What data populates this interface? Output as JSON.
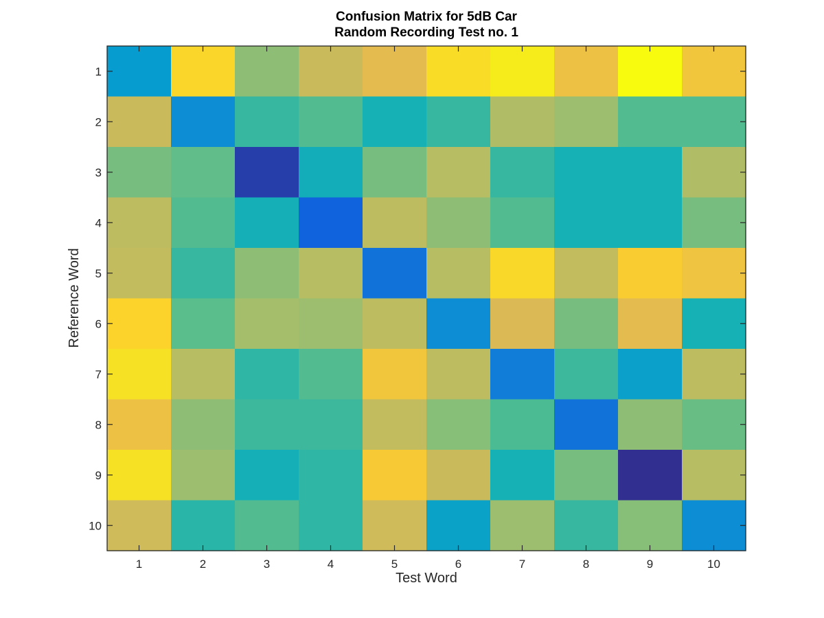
{
  "chart_data": {
    "type": "heatmap",
    "title": [
      "Confusion Matrix for 5dB Car",
      "Random Recording Test no. 1"
    ],
    "xlabel": "Test Word",
    "ylabel": "Reference Word",
    "x_categories": [
      "1",
      "2",
      "3",
      "4",
      "5",
      "6",
      "7",
      "8",
      "9",
      "10"
    ],
    "y_categories": [
      "1",
      "2",
      "3",
      "4",
      "5",
      "6",
      "7",
      "8",
      "9",
      "10"
    ],
    "colormap": "parula",
    "clim": [
      0,
      1
    ],
    "values": [
      [
        0.3,
        0.83,
        0.57,
        0.66,
        0.71,
        0.86,
        0.93,
        0.74,
        1.0,
        0.76
      ],
      [
        0.66,
        0.25,
        0.45,
        0.49,
        0.4,
        0.45,
        0.62,
        0.59,
        0.49,
        0.49
      ],
      [
        0.54,
        0.51,
        0.04,
        0.38,
        0.54,
        0.63,
        0.45,
        0.4,
        0.4,
        0.62
      ],
      [
        0.64,
        0.49,
        0.39,
        0.12,
        0.64,
        0.57,
        0.49,
        0.4,
        0.4,
        0.54
      ],
      [
        0.65,
        0.45,
        0.57,
        0.63,
        0.17,
        0.63,
        0.84,
        0.65,
        0.79,
        0.75
      ],
      [
        0.82,
        0.5,
        0.6,
        0.59,
        0.64,
        0.25,
        0.69,
        0.54,
        0.71,
        0.4
      ],
      [
        0.88,
        0.63,
        0.44,
        0.49,
        0.76,
        0.64,
        0.2,
        0.46,
        0.32,
        0.64
      ],
      [
        0.74,
        0.57,
        0.46,
        0.46,
        0.65,
        0.56,
        0.48,
        0.17,
        0.57,
        0.52
      ],
      [
        0.88,
        0.59,
        0.39,
        0.44,
        0.78,
        0.66,
        0.4,
        0.54,
        0.01,
        0.63
      ],
      [
        0.67,
        0.43,
        0.49,
        0.44,
        0.67,
        0.33,
        0.59,
        0.45,
        0.56,
        0.25
      ]
    ],
    "grid": false,
    "legend": "none"
  },
  "colors": {
    "background": "#ffffff",
    "axis": "#262626",
    "title": "#000000"
  }
}
